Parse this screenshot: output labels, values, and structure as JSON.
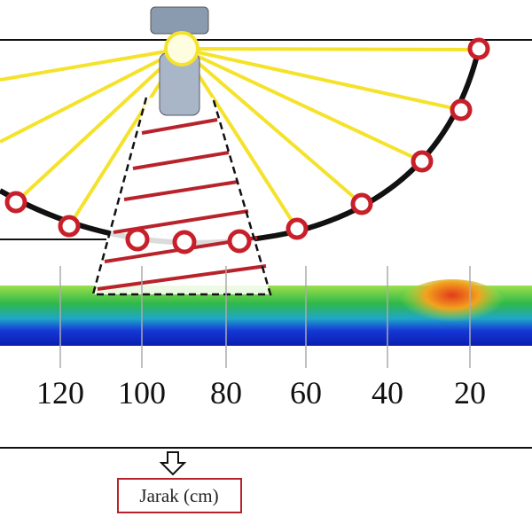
{
  "axis": {
    "ticks": [
      "120",
      "100",
      "80",
      "60",
      "40",
      "20"
    ]
  },
  "axis_label": "Jarak (cm)"
}
